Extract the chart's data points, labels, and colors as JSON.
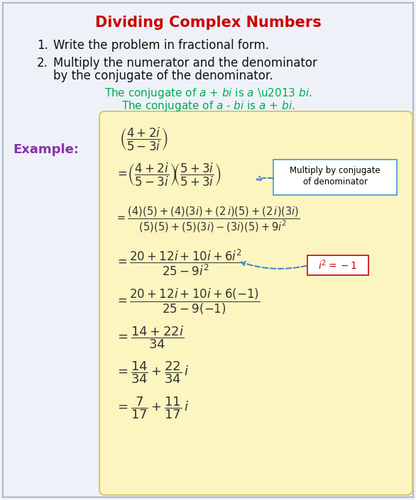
{
  "title": "Dividing Complex Numbers",
  "title_color": "#cc0000",
  "bg_color": "#eef2f8",
  "box_bg_color": "#fdf5c0",
  "box_edge_color": "#d4c87a",
  "step1": "Write the problem in fractional form.",
  "step2_line1": "Multiply the numerator and the denominator",
  "step2_line2": "by the conjugate of the denominator.",
  "conj_color": "#00aa55",
  "example_color": "#8833aa",
  "text_color": "#111111",
  "arrow_color": "#4488cc",
  "callout_border": "#4499cc",
  "i2_color": "#cc0000",
  "math_color": "#333333",
  "border_color": "#aabbcc",
  "figw": 5.86,
  "figh": 7.05,
  "dpi": 100
}
